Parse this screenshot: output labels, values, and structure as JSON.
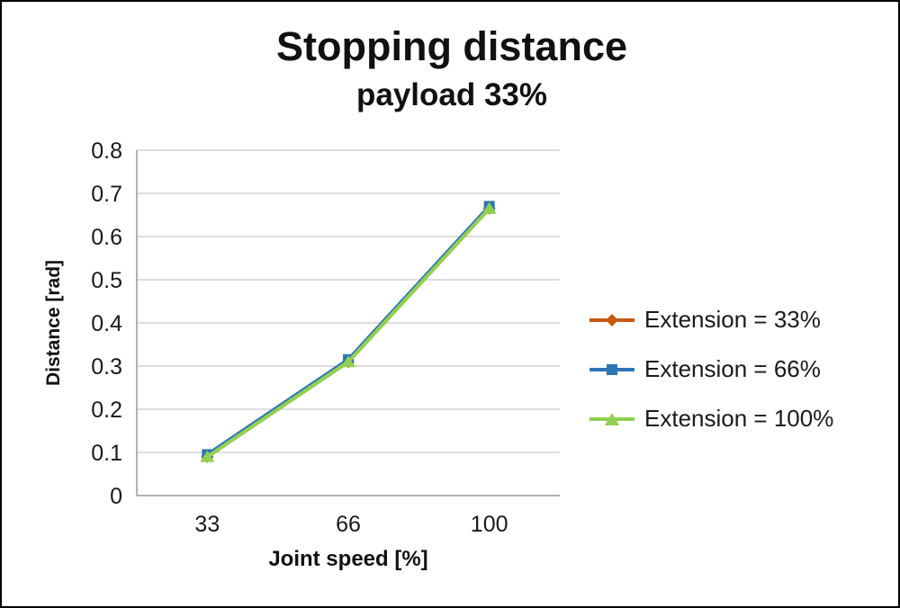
{
  "page": {
    "background": "#ffffff",
    "border_color": "#000000"
  },
  "chart_data": {
    "type": "line",
    "title": "Stopping distance",
    "subtitle": "payload 33%",
    "xlabel": "Joint speed [%]",
    "ylabel": "Distance [rad]",
    "categories": [
      "33",
      "66",
      "100"
    ],
    "x_values": [
      33,
      66,
      100
    ],
    "ylim": [
      0,
      0.8
    ],
    "y_ticks": [
      0,
      0.1,
      0.2,
      0.3,
      0.4,
      0.5,
      0.6,
      0.7,
      0.8
    ],
    "grid": true,
    "grid_color": "#C9C9C9",
    "axis_color": "#9A9A9A",
    "legend_position": "right",
    "series": [
      {
        "name": "Extension = 33%",
        "marker": "diamond",
        "color": "#C55A11",
        "values": [
          0.09,
          0.31,
          0.665
        ]
      },
      {
        "name": "Extension = 66%",
        "marker": "square",
        "color": "#2E75B6",
        "values": [
          0.095,
          0.315,
          0.67
        ]
      },
      {
        "name": "Extension = 100%",
        "marker": "triangle",
        "color": "#92D050",
        "values": [
          0.09,
          0.31,
          0.665
        ]
      }
    ]
  }
}
